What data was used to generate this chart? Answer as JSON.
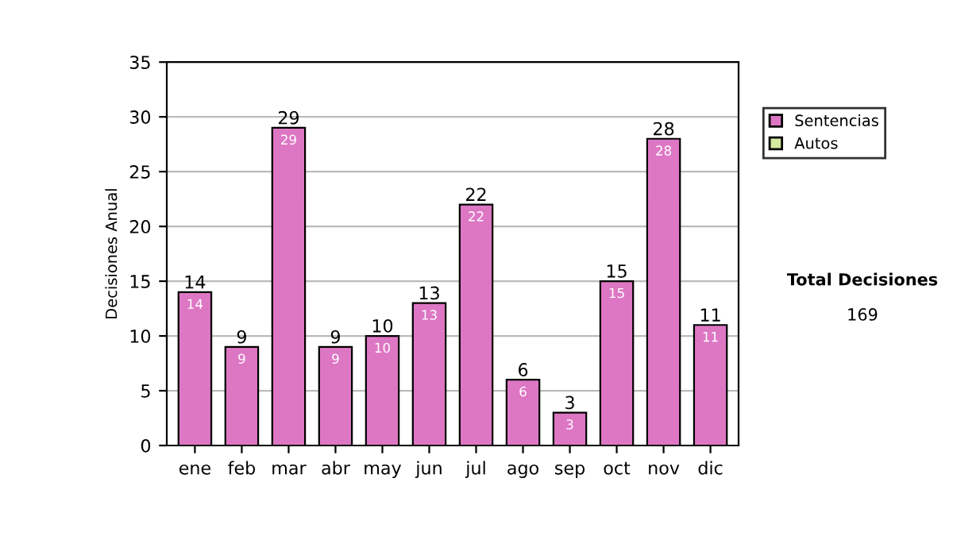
{
  "chart_data": {
    "type": "bar",
    "ylabel": "Decisiones Anual",
    "categories": [
      "ene",
      "feb",
      "mar",
      "abr",
      "may",
      "jun",
      "jul",
      "ago",
      "sep",
      "oct",
      "nov",
      "dic"
    ],
    "series": [
      {
        "name": "Sentencias",
        "color": "#dd77c4",
        "values": [
          14,
          9,
          29,
          9,
          10,
          13,
          22,
          6,
          3,
          15,
          28,
          11
        ],
        "value_labels": [
          "14",
          "9",
          "29",
          "9",
          "10",
          "13",
          "22",
          "6",
          "3",
          "15",
          "28",
          "11"
        ]
      },
      {
        "name": "Autos",
        "color": "#d4eaa0",
        "values": [
          null,
          null,
          null,
          null,
          null,
          null,
          null,
          null,
          null,
          null,
          null,
          null
        ]
      }
    ],
    "ylim": [
      0,
      35
    ],
    "yticks": [
      0,
      5,
      10,
      15,
      20,
      25,
      30,
      35
    ],
    "grid": "y",
    "legend": "right",
    "annotations": [
      "Total Decisiones",
      "169",
      {
        "text": "14",
        "x": "ene",
        "y": 14
      },
      {
        "text": "9",
        "x": "feb",
        "y": 9
      },
      {
        "text": "29",
        "x": "mar",
        "y": 29
      },
      {
        "text": "9",
        "x": "abr",
        "y": 9
      },
      {
        "text": "10",
        "x": "may",
        "y": 10
      },
      {
        "text": "13",
        "x": "jun",
        "y": 13
      },
      {
        "text": "22",
        "x": "jul",
        "y": 22
      },
      {
        "text": "6",
        "x": "ago",
        "y": 6
      },
      {
        "text": "3",
        "x": "sep",
        "y": 3
      },
      {
        "text": "15",
        "x": "oct",
        "y": 15
      },
      {
        "text": "28",
        "x": "nov",
        "y": 28
      },
      {
        "text": "11",
        "x": "dic",
        "y": 11
      }
    ]
  }
}
